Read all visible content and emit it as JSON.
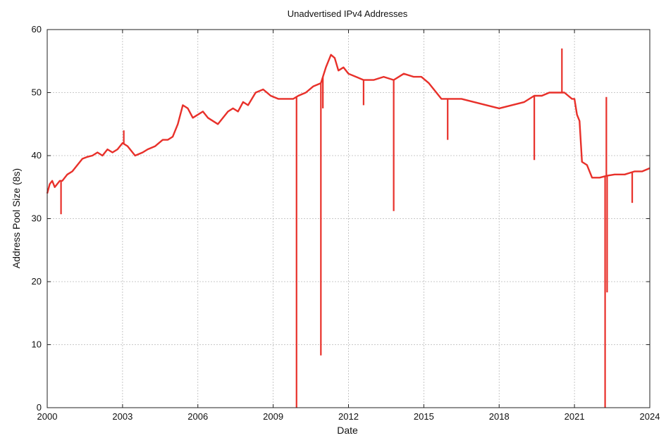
{
  "chart_data": {
    "type": "line",
    "title": "Unadvertised IPv4 Addresses",
    "xlabel": "Date",
    "ylabel": "Address Pool Size (8s)",
    "xlim": [
      2000,
      2024
    ],
    "ylim": [
      0,
      60
    ],
    "x_ticks": [
      "2000",
      "2003",
      "2006",
      "2009",
      "2012",
      "2015",
      "2018",
      "2021",
      "2024"
    ],
    "y_ticks": [
      "0",
      "10",
      "20",
      "30",
      "40",
      "50",
      "60"
    ],
    "grid": true,
    "series_color": "#e8302a",
    "series": [
      {
        "x": [
          2000.0,
          2000.1,
          2000.2,
          2000.3,
          2000.4,
          2000.5,
          2000.6,
          2000.7,
          2000.8,
          2001.0,
          2001.2,
          2001.4,
          2001.6,
          2001.8,
          2002.0,
          2002.2,
          2002.4,
          2002.6,
          2002.8,
          2003.0,
          2003.2,
          2003.5,
          2003.8,
          2004.0,
          2004.3,
          2004.6,
          2004.8,
          2005.0,
          2005.2,
          2005.4,
          2005.6,
          2005.8,
          2006.0,
          2006.2,
          2006.4,
          2006.6,
          2006.8,
          2007.0,
          2007.2,
          2007.4,
          2007.6,
          2007.8,
          2008.0,
          2008.3,
          2008.6,
          2008.9,
          2009.2,
          2009.5,
          2009.8,
          2010.0,
          2010.3,
          2010.6,
          2010.9,
          2011.1,
          2011.3,
          2011.45,
          2011.6,
          2011.8,
          2012.0,
          2012.3,
          2012.6,
          2013.0,
          2013.4,
          2013.8,
          2014.2,
          2014.6,
          2014.9,
          2015.2,
          2015.5,
          2015.7,
          2016.0,
          2016.5,
          2017.0,
          2017.5,
          2018.0,
          2018.5,
          2019.0,
          2019.4,
          2019.7,
          2020.0,
          2020.3,
          2020.6,
          2020.9,
          2021.0,
          2021.1,
          2021.2,
          2021.3,
          2021.5,
          2021.7,
          2022.0,
          2022.3,
          2022.6,
          2023.0,
          2023.4,
          2023.7,
          2024.0
        ],
        "y": [
          34.0,
          35.5,
          36.0,
          35.0,
          35.5,
          36.0,
          36.0,
          36.5,
          37.0,
          37.5,
          38.5,
          39.5,
          39.8,
          40.0,
          40.5,
          40.0,
          41.0,
          40.5,
          41.0,
          42.0,
          41.5,
          40.0,
          40.5,
          41.0,
          41.5,
          42.5,
          42.5,
          43.0,
          45.0,
          48.0,
          47.5,
          46.0,
          46.5,
          47.0,
          46.0,
          45.5,
          45.0,
          46.0,
          47.0,
          47.5,
          47.0,
          48.5,
          48.0,
          50.0,
          50.5,
          49.5,
          49.0,
          49.0,
          49.0,
          49.5,
          50.0,
          51.0,
          51.5,
          54.0,
          56.0,
          55.5,
          53.5,
          54.0,
          53.0,
          52.5,
          52.0,
          52.0,
          52.5,
          52.0,
          53.0,
          52.5,
          52.5,
          51.5,
          50.0,
          49.0,
          49.0,
          49.0,
          48.5,
          48.0,
          47.5,
          48.0,
          48.5,
          49.5,
          49.5,
          50.0,
          50.0,
          50.0,
          49.0,
          49.0,
          46.5,
          45.5,
          39.0,
          38.5,
          36.5,
          36.5,
          36.8,
          37.0,
          37.0,
          37.5,
          37.5,
          38.0
        ]
      }
    ],
    "spikes": [
      {
        "x": 2000.55,
        "y": 30.7
      },
      {
        "x": 2003.05,
        "y": 44.0
      },
      {
        "x": 2009.93,
        "y": 0.0
      },
      {
        "x": 2010.9,
        "y": 8.3
      },
      {
        "x": 2010.98,
        "y": 47.5
      },
      {
        "x": 2012.6,
        "y": 48.0
      },
      {
        "x": 2013.8,
        "y": 31.2
      },
      {
        "x": 2015.95,
        "y": 42.5
      },
      {
        "x": 2019.4,
        "y": 39.3
      },
      {
        "x": 2020.5,
        "y": 57.0
      },
      {
        "x": 2022.22,
        "y": 0.0
      },
      {
        "x": 2022.27,
        "y": 49.3
      },
      {
        "x": 2022.3,
        "y": 18.3
      },
      {
        "x": 2023.3,
        "y": 32.5
      }
    ]
  }
}
